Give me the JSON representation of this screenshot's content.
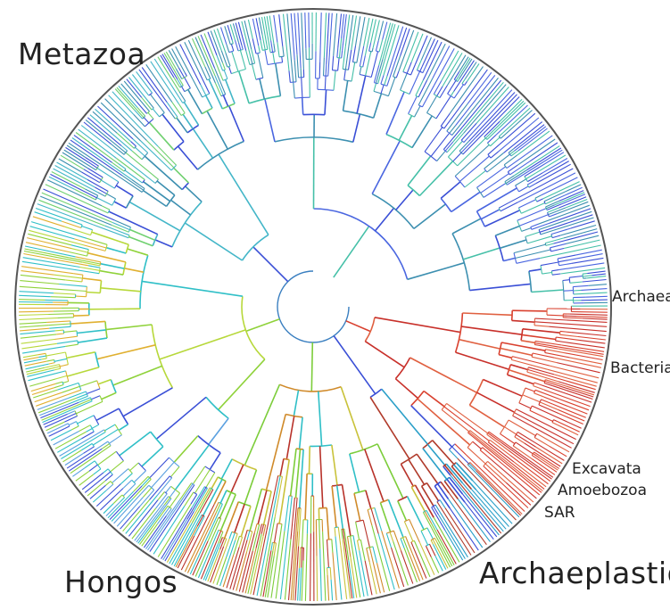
{
  "labels": {
    "metazoa": "Metazoa",
    "hongos": "Hongos",
    "archaeplastida": "Archaeplastida",
    "archaea": "Archaea",
    "bacteria": "Bacteria",
    "excavata": "Excavata",
    "amoebozoa": "Amoebozoa",
    "sar": "SAR"
  },
  "colors": {
    "background": "#ffffff",
    "outer_ring": "#555555",
    "bacteria_red": "#d9402e",
    "archaea_red": "#c8302a",
    "metazoa_blue": "#3a4fd6",
    "metazoa_teal": "#3c8fb0",
    "fungi_green": "#8fd23a",
    "fungi_cyan": "#2fbfc7",
    "plant_orange": "#d08a2a",
    "plant_yellow": "#c9c23a"
  }
}
